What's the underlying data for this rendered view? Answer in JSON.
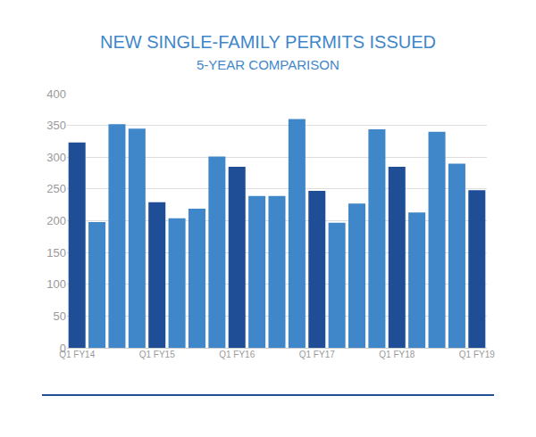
{
  "chart_data": {
    "type": "bar",
    "title": "NEW SINGLE-FAMILY PERMITS ISSUED",
    "subtitle": "5-YEAR COMPARISON",
    "categories": [
      "Q1 FY14",
      null,
      null,
      null,
      "Q1 FY15",
      null,
      null,
      null,
      "Q1 FY16",
      null,
      null,
      null,
      "Q1 FY17",
      null,
      null,
      null,
      "Q1 FY18",
      null,
      null,
      null,
      "Q1 FY19"
    ],
    "values": [
      323,
      198,
      352,
      345,
      229,
      204,
      219,
      301,
      285,
      239,
      239,
      360,
      247,
      197,
      227,
      344,
      285,
      213,
      340,
      290,
      248
    ],
    "colors": [
      "#1f4e96",
      "#3f87c9",
      "#3f87c9",
      "#3f87c9",
      "#1f4e96",
      "#3f87c9",
      "#3f87c9",
      "#3f87c9",
      "#1f4e96",
      "#3f87c9",
      "#3f87c9",
      "#3f87c9",
      "#1f4e96",
      "#3f87c9",
      "#3f87c9",
      "#3f87c9",
      "#1f4e96",
      "#3f87c9",
      "#3f87c9",
      "#3f87c9",
      "#1f4e96"
    ],
    "ylim": [
      0,
      400
    ],
    "yticks": [
      0,
      50,
      100,
      150,
      200,
      250,
      300,
      350,
      400
    ],
    "grid": true
  }
}
